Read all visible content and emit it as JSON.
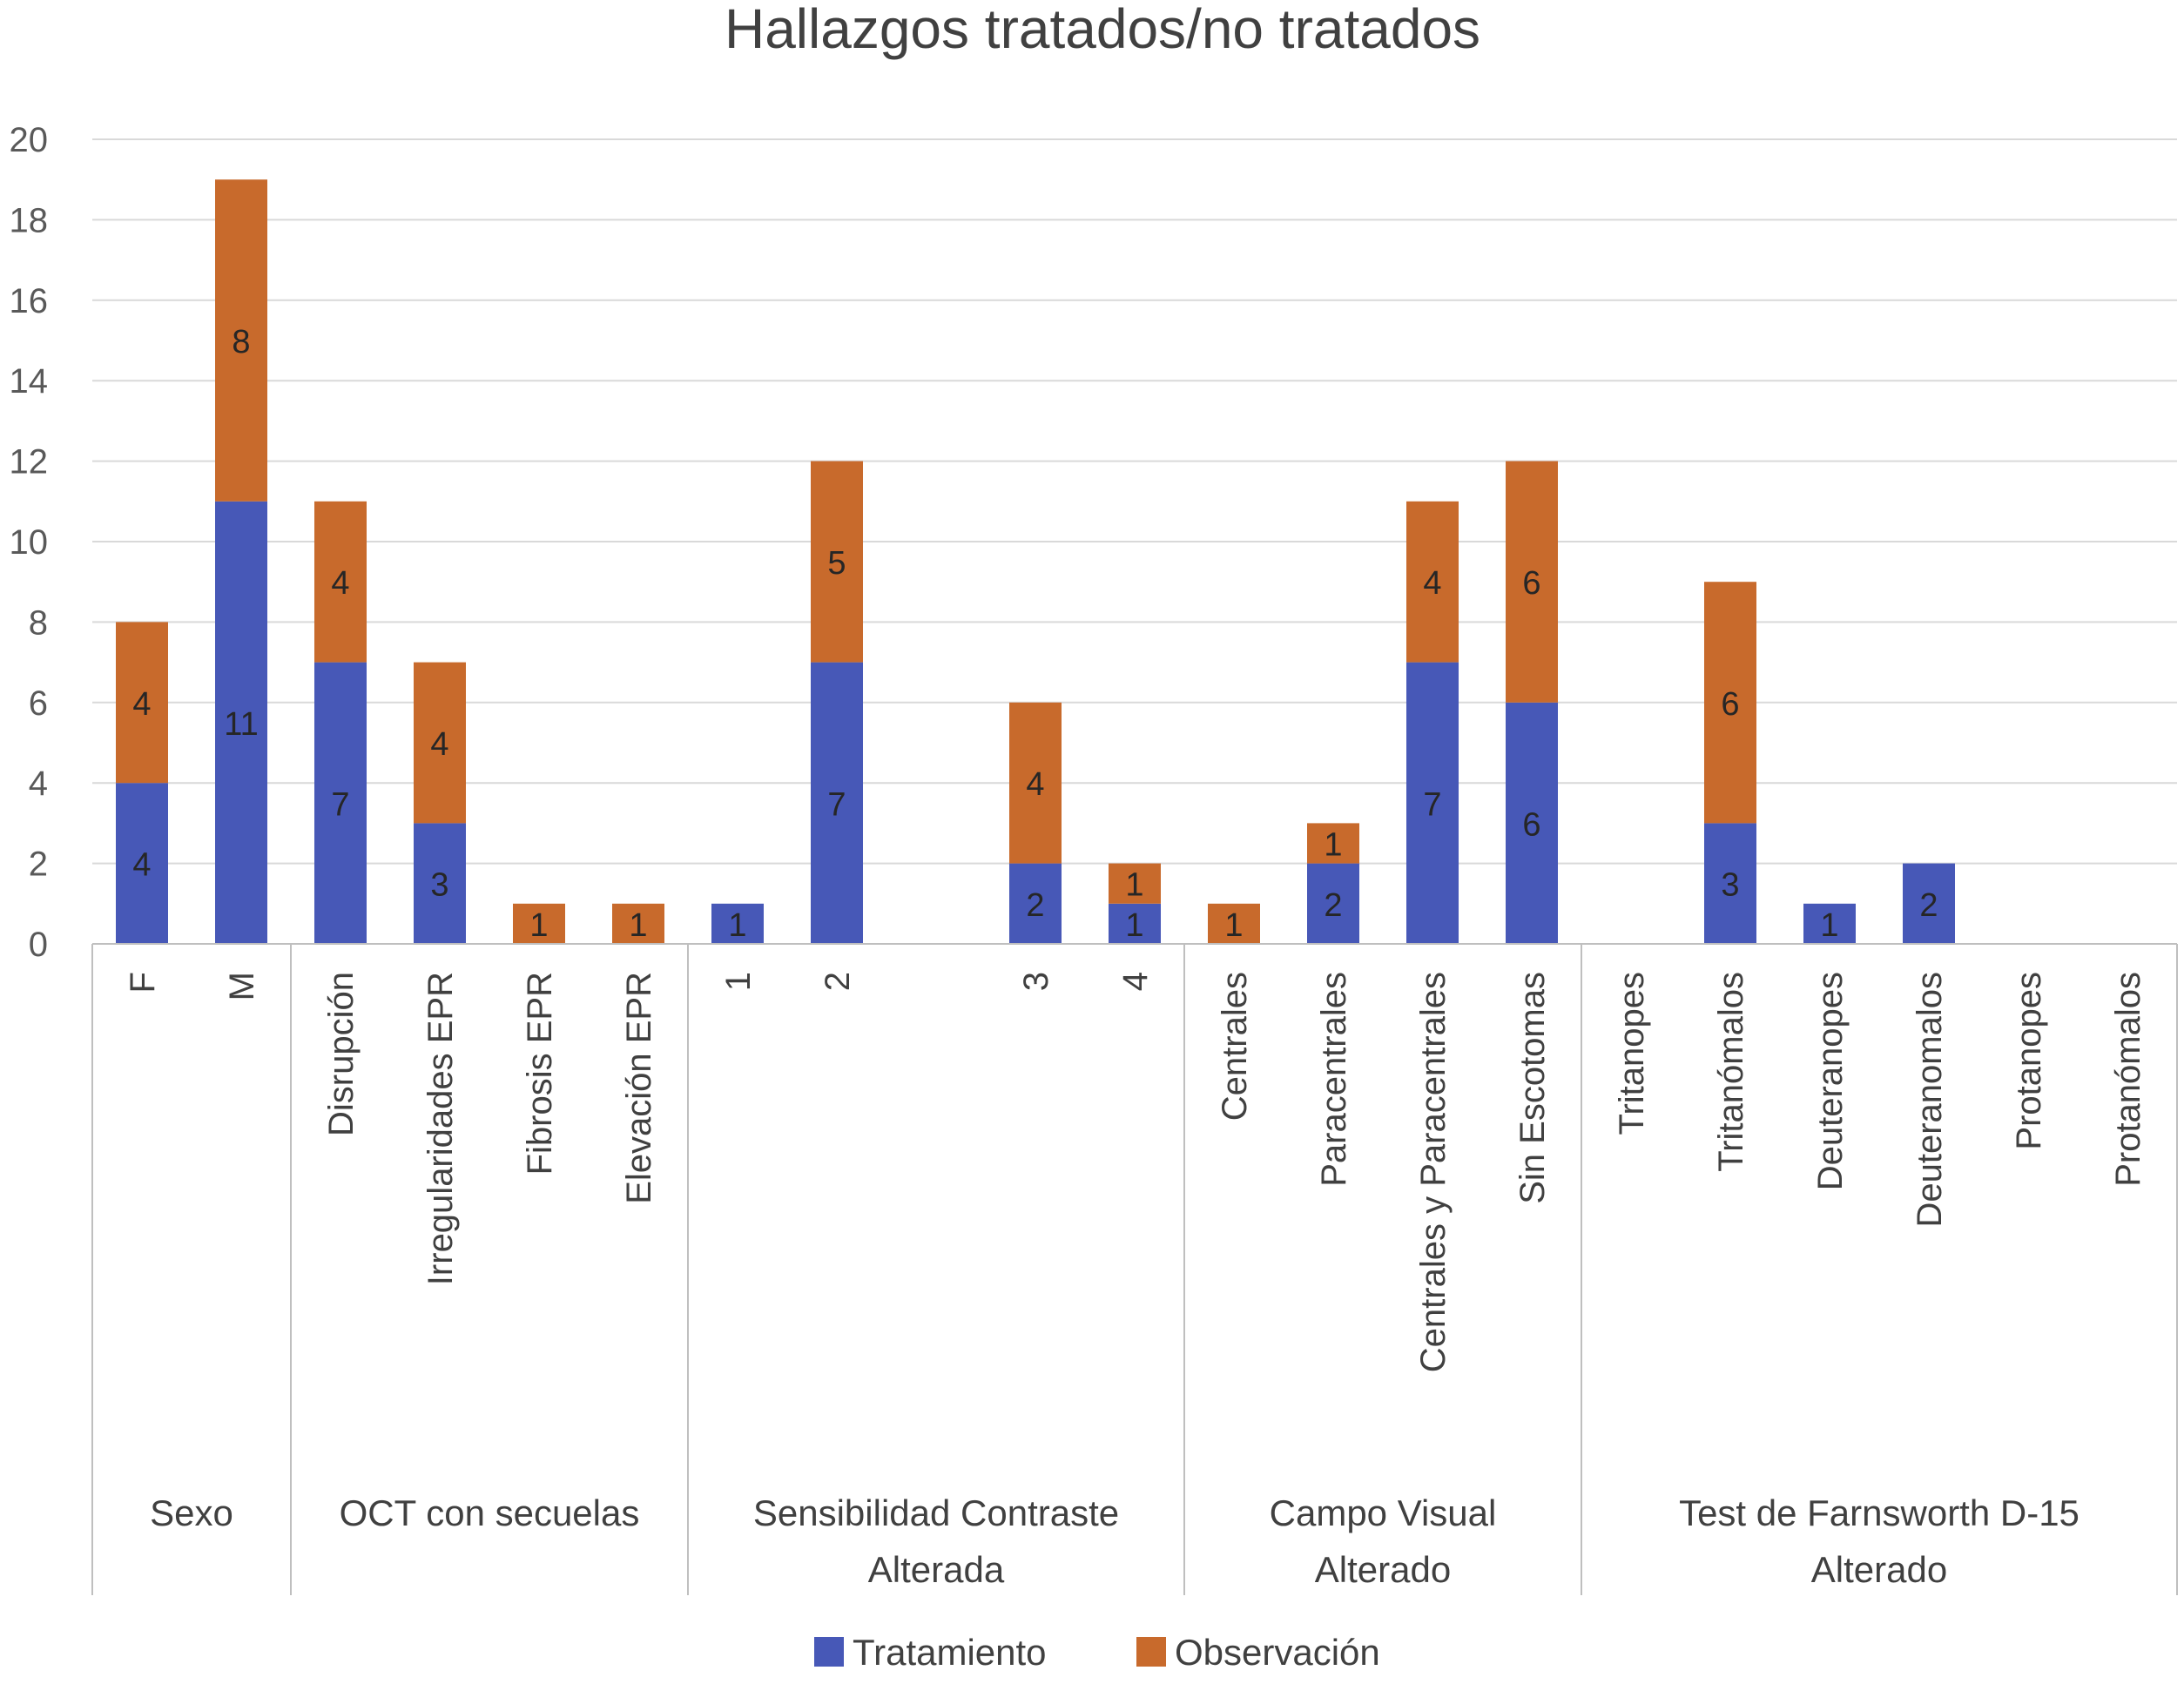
{
  "chart_data": {
    "type": "bar",
    "stacked": true,
    "title": "Hallazgos tratados/no tratados",
    "xlabel": "",
    "ylabel": "",
    "ylim": [
      0,
      20
    ],
    "y_ticks": [
      "0",
      "2",
      "4",
      "6",
      "8",
      "10",
      "12",
      "14",
      "16",
      "18",
      "20"
    ],
    "grid": true,
    "legend_position": "bottom",
    "categories": [
      "F",
      "M",
      "Disrupción",
      "Irregularidades EPR",
      "Fibrosis EPR",
      "Elevación EPR",
      "1",
      "2",
      "",
      "3",
      "4",
      "Centrales",
      "Paracentrales",
      "Centrales y Paracentrales",
      "Sin Escotomas",
      "Tritanopes",
      "Tritanómalos",
      "Deuteranopes",
      "Deuteranomalos",
      "Protanopes",
      "Protanómalos"
    ],
    "groups": [
      {
        "label_lines": [
          "Sexo"
        ],
        "count": 2
      },
      {
        "label_lines": [
          "OCT con secuelas"
        ],
        "count": 4
      },
      {
        "label_lines": [
          "Sensibilidad Contraste",
          "Alterada"
        ],
        "count": 5
      },
      {
        "label_lines": [
          "Campo Visual",
          "Alterado"
        ],
        "count": 4
      },
      {
        "label_lines": [
          "Test de Farnsworth D-15",
          "Alterado"
        ],
        "count": 6
      }
    ],
    "series": [
      {
        "name": "Tratamiento",
        "color": "#4758b7",
        "values": [
          4,
          11,
          7,
          3,
          0,
          0,
          1,
          7,
          0,
          2,
          1,
          0,
          2,
          7,
          6,
          0,
          3,
          1,
          2,
          0,
          0
        ],
        "data_labels": [
          "4",
          "11",
          "7",
          "3",
          "",
          "",
          "1",
          "7",
          "",
          "2",
          "1",
          "",
          "2",
          "7",
          "6",
          "",
          "3",
          "1",
          "2",
          "",
          ""
        ]
      },
      {
        "name": "Observación",
        "color": "#c86a2c",
        "values": [
          4,
          8,
          4,
          4,
          1,
          1,
          0,
          5,
          0,
          4,
          1,
          1,
          1,
          4,
          6,
          0,
          6,
          0,
          0,
          0,
          0
        ],
        "data_labels": [
          "4",
          "8",
          "4",
          "4",
          "1",
          "1",
          "",
          "5",
          "",
          "4",
          "1",
          "1",
          "1",
          "4",
          "6",
          "",
          "6",
          "",
          "",
          "",
          ""
        ]
      }
    ]
  }
}
